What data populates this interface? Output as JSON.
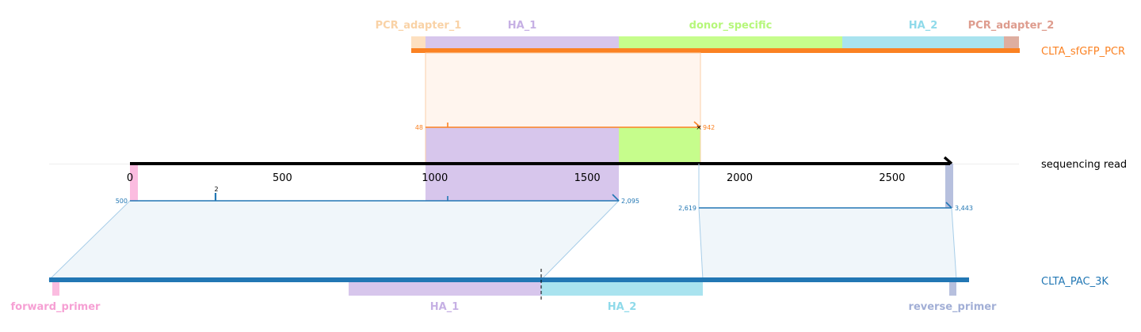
{
  "colors": {
    "pcr_adapter_1": "#fde0c0",
    "pcr_adapter_1_text": "#f9d2a6",
    "ha_1": "#d7c6ec",
    "ha_1_text": "#c6b0e4",
    "donor_specific": "#c6fd8c",
    "donor_specific_text": "#b6f77a",
    "ha_2": "#a9e3ef",
    "ha_2_text": "#8fdaea",
    "pcr_adapter_2": "#deaea0",
    "pcr_adapter_2_text": "#de9c8e",
    "pcr_track": "#fb8223",
    "read_axis": "#000000",
    "pac_track": "#2277b4",
    "alignment_blue": "#2277b4",
    "alignment_orange": "#fb8223",
    "forward_primer": "#fbbce0",
    "forward_primer_text": "#f6a0d4",
    "reverse_primer": "#b7c0de",
    "reverse_primer_text": "#a2afd6"
  },
  "top_features": [
    {
      "key": "pcr_adapter_1",
      "label": "PCR_adapter_1"
    },
    {
      "key": "ha_1",
      "label": "HA_1"
    },
    {
      "key": "donor_specific",
      "label": "donor_specific"
    },
    {
      "key": "ha_2",
      "label": "HA_2"
    },
    {
      "key": "pcr_adapter_2",
      "label": "PCR_adapter_2"
    }
  ],
  "bottom_features": [
    {
      "key": "forward_primer",
      "label": "forward_primer"
    },
    {
      "key": "ha_1",
      "label": "HA_1"
    },
    {
      "key": "ha_2",
      "label": "HA_2"
    },
    {
      "key": "reverse_primer",
      "label": "reverse_primer"
    }
  ],
  "tracks": {
    "pcr": "CLTA_sfGFP_PCR",
    "read": "sequencing read",
    "pac": "CLTA_PAC_3K"
  },
  "axis": {
    "ticks": [
      "0",
      "500",
      "1000",
      "1500",
      "2000",
      "2500"
    ],
    "read_length": 2690
  },
  "alignments": {
    "orange": {
      "start_label": "48",
      "end_label": "942",
      "read_start": 964,
      "read_end": 1860
    },
    "blue_1": {
      "start_label": "500",
      "end_label": "2,095",
      "read_start": 0,
      "read_end": 1595,
      "insertion_label": "2"
    },
    "blue_2": {
      "start_label": "2,619",
      "end_label": "3,443",
      "read_start": 1860,
      "read_end": 2690
    }
  }
}
